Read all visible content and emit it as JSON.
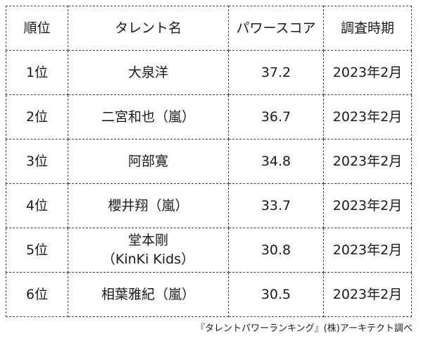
{
  "table": {
    "headers": {
      "rank": "順位",
      "talent": "タレント名",
      "score": "パワースコア",
      "date": "調査時期"
    },
    "rows": [
      {
        "rank": "1位",
        "name": "大泉洋",
        "name_sub": "",
        "score": "37.2",
        "date": "2023年2月"
      },
      {
        "rank": "2位",
        "name": "二宮和也（嵐）",
        "name_sub": "",
        "score": "36.7",
        "date": "2023年2月"
      },
      {
        "rank": "3位",
        "name": "阿部寛",
        "name_sub": "",
        "score": "34.8",
        "date": "2023年2月"
      },
      {
        "rank": "4位",
        "name": "櫻井翔（嵐）",
        "name_sub": "",
        "score": "33.7",
        "date": "2023年2月"
      },
      {
        "rank": "5位",
        "name": "堂本剛",
        "name_sub": "（KinKi Kids）",
        "score": "30.8",
        "date": "2023年2月"
      },
      {
        "rank": "6位",
        "name": "相葉雅紀（嵐）",
        "name_sub": "",
        "score": "30.5",
        "date": "2023年2月"
      }
    ]
  },
  "footnote": "『タレントパワーランキング』(株)アーキテクト調べ"
}
